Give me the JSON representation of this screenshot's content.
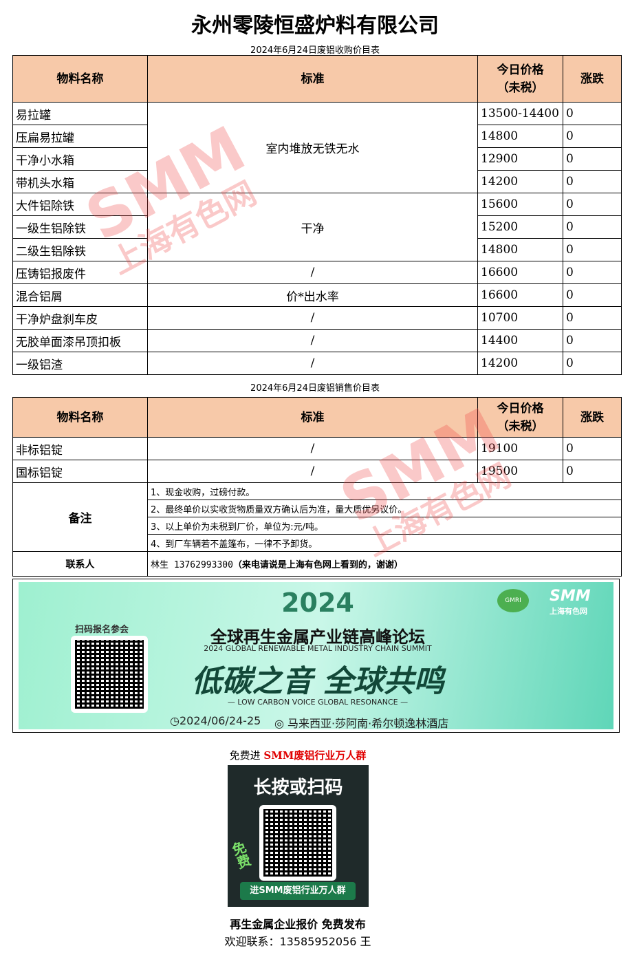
{
  "company": "永州零陵恒盛炉料有限公司",
  "table1": {
    "caption": "2024年6月24日废铝收购价目表",
    "headers": [
      "物料名称",
      "标准",
      "今日价格",
      "（未税）",
      "涨跌"
    ],
    "rows": [
      [
        "易拉罐",
        "13500-14400",
        "0"
      ],
      [
        "压扁易拉罐",
        "14800",
        "0"
      ],
      [
        "干净小水箱",
        "12900",
        "0"
      ],
      [
        "带机头水箱",
        "14200",
        "0"
      ],
      [
        "大件铝除铁",
        "15600",
        "0"
      ],
      [
        "一级生铝除铁",
        "15200",
        "0"
      ],
      [
        "二级生铝除铁",
        "14800",
        "0"
      ],
      [
        "压铸铝报废件",
        "16600",
        "0"
      ],
      [
        "混合铝屑",
        "16600",
        "0"
      ],
      [
        "干净炉盘刹车皮",
        "10700",
        "0"
      ],
      [
        "无胶单面漆吊顶扣板",
        "14400",
        "0"
      ],
      [
        "一级铝渣",
        "14200",
        "0"
      ]
    ],
    "standards": [
      "室内堆放无铁无水",
      "干净",
      "/",
      "价*出水率",
      "/",
      "/",
      "/"
    ]
  },
  "table2": {
    "caption": "2024年6月24日废铝销售价目表",
    "headers": [
      "物料名称",
      "标准",
      "今日价格",
      "（未税）",
      "涨跌"
    ],
    "rows": [
      [
        "非标铝锭",
        "/",
        "19100",
        "0"
      ],
      [
        "国标铝锭",
        "/",
        "19500",
        "0"
      ]
    ],
    "notes_label": "备注",
    "notes": [
      "1、现金收购，过磅付款。",
      "2、最终单价以实收货物质量双方确认后为准，量大质优另议价。",
      "3、以上单价为未税到厂价，单位为:元/吨。",
      "4、到厂车辆若不盖篷布，一律不予卸货。"
    ],
    "contact_label": "联系人",
    "contact_name": "林生 13762993300",
    "contact_note": "（来电请说是上海有色网上看到的，谢谢）"
  },
  "watermark": {
    "brand": "SMM",
    "sub": "上海有色网"
  },
  "banner": {
    "scan": "扫码报名参会",
    "year": "2024",
    "title": "全球再生金属产业链高峰论坛",
    "title_en": "2024 GLOBAL RENEWABLE METAL INDUSTRY CHAIN SUMMIT",
    "slogan": "低碳之音 全球共鸣",
    "slogan_en": "— LOW CARBON VOICE GLOBAL RESONANCE —",
    "when": "◷2024/06/24-25",
    "where": "◎ 马来西亚·莎阿南·希尔顿逸林酒店",
    "logo1": "GMRI",
    "logo2": "SMM",
    "logo2_sub": "上海有色网"
  },
  "footer": {
    "invite_prefix": "免费进 ",
    "invite_highlight": "SMM废铝行业万人群",
    "qr_title": "长按或扫码",
    "qr_free": "免费",
    "qr_button": "进SMM废铝行业万人群",
    "line1": "再生金属企业报价 免费发布",
    "line2": "欢迎联系：13585952056 王"
  },
  "colors": {
    "header_bg": "#f7c9a9",
    "highlight": "#e00000",
    "watermark": "#f04040"
  }
}
